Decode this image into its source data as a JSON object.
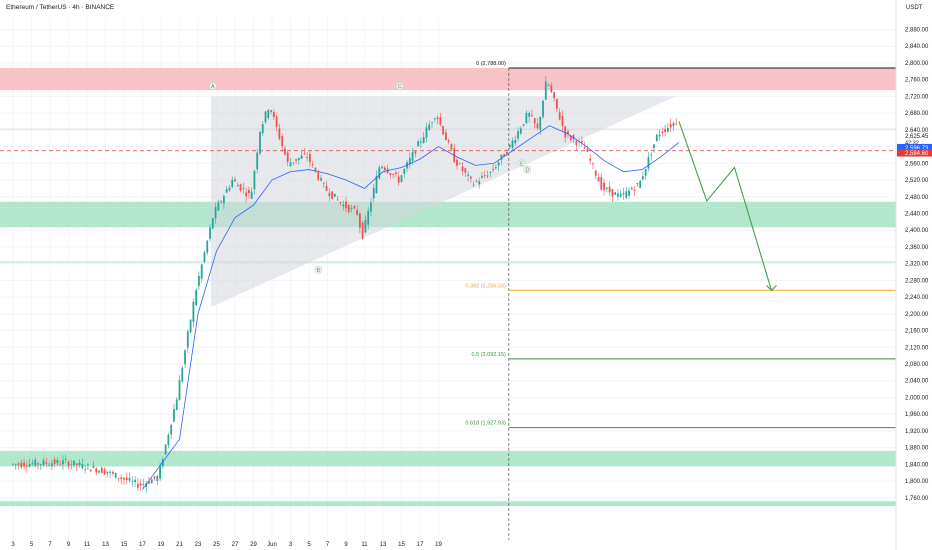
{
  "header": {
    "title": "Ethereum / TetherUS · 4h · BINANCE",
    "quote_currency": "USDT"
  },
  "colors": {
    "up": "#26a69a",
    "down": "#ef5350",
    "ema": "#2962ff",
    "resistance_zone": "#f7b9bd",
    "support_zone": "#a5e3c6",
    "projection": "#43a047",
    "fib_0382": "#f2a52c",
    "fib_05": "#388e3c",
    "fib_0618": "#388e3c",
    "current_line": "#e53935",
    "triangle": "#d4d7dd"
  },
  "chart_data": {
    "type": "candlestick",
    "symbol": "ETH/USDT",
    "interval": "4h",
    "x_ticks": [
      "3",
      "5",
      "7",
      "9",
      "11",
      "13",
      "15",
      "17",
      "19",
      "21",
      "23",
      "25",
      "27",
      "29",
      "Jun",
      "3",
      "5",
      "7",
      "9",
      "11",
      "13",
      "15",
      "17",
      "19"
    ],
    "y_ticks": [
      "2,880.00",
      "2,840.00",
      "2,800.00",
      "2,760.00",
      "2,720.00",
      "2,680.00",
      "2,640.00",
      "2,600.00",
      "2,560.00",
      "2,520.00",
      "2,480.00",
      "2,440.00",
      "2,400.00",
      "2,360.00",
      "2,320.00",
      "2,280.00",
      "2,240.00",
      "2,200.00",
      "2,160.00",
      "2,120.00",
      "2,080.00",
      "2,040.00",
      "2,000.00",
      "1,960.00",
      "1,920.00",
      "1,880.00",
      "1,840.00",
      "1,800.00",
      "1,760.00"
    ],
    "ylim": [
      1740,
      2900
    ],
    "price_path": [
      [
        0,
        1840
      ],
      [
        3,
        1845
      ],
      [
        5,
        1825
      ],
      [
        7,
        1790
      ],
      [
        8,
        1810
      ],
      [
        9,
        2000
      ],
      [
        10,
        2250
      ],
      [
        11,
        2440
      ],
      [
        12,
        2520
      ],
      [
        13,
        2480
      ],
      [
        13.5,
        2640
      ],
      [
        14,
        2700
      ],
      [
        15,
        2560
      ],
      [
        16,
        2580
      ],
      [
        17,
        2500
      ],
      [
        18,
        2460
      ],
      [
        18.8,
        2440
      ],
      [
        19,
        2380
      ],
      [
        20,
        2560
      ],
      [
        21,
        2520
      ],
      [
        22,
        2600
      ],
      [
        23,
        2680
      ],
      [
        24,
        2570
      ],
      [
        25,
        2510
      ],
      [
        26,
        2540
      ],
      [
        27,
        2600
      ],
      [
        28,
        2680
      ],
      [
        28.5,
        2640
      ],
      [
        29,
        2760
      ],
      [
        30,
        2630
      ],
      [
        31,
        2600
      ],
      [
        32,
        2500
      ],
      [
        33,
        2480
      ],
      [
        34,
        2510
      ],
      [
        35,
        2630
      ],
      [
        36,
        2660
      ]
    ],
    "ema_path": [
      [
        7,
        1780
      ],
      [
        9,
        1900
      ],
      [
        10,
        2200
      ],
      [
        11,
        2350
      ],
      [
        12,
        2430
      ],
      [
        13,
        2460
      ],
      [
        14,
        2520
      ],
      [
        15,
        2540
      ],
      [
        16,
        2545
      ],
      [
        17,
        2535
      ],
      [
        18,
        2520
      ],
      [
        19,
        2500
      ],
      [
        20,
        2540
      ],
      [
        21,
        2550
      ],
      [
        22,
        2570
      ],
      [
        23,
        2600
      ],
      [
        24,
        2575
      ],
      [
        25,
        2555
      ],
      [
        26,
        2560
      ],
      [
        27,
        2590
      ],
      [
        28,
        2620
      ],
      [
        29,
        2650
      ],
      [
        30,
        2630
      ],
      [
        31,
        2600
      ],
      [
        32,
        2565
      ],
      [
        33,
        2540
      ],
      [
        34,
        2545
      ],
      [
        35,
        2575
      ],
      [
        36,
        2610
      ]
    ],
    "zones": [
      {
        "kind": "resistance",
        "from": 2735,
        "to": 2788
      },
      {
        "kind": "support",
        "from": 2407,
        "to": 2468
      },
      {
        "kind": "support",
        "from": 1835,
        "to": 1872
      },
      {
        "kind": "support",
        "from": 1740,
        "to": 1752
      }
    ],
    "fibonacci": [
      {
        "label": "0 (2,788.00)",
        "price": 2788,
        "color": "#131722"
      },
      {
        "label": "0.382 (2,256.33)",
        "price": 2256.33,
        "color": "#f2a52c"
      },
      {
        "label": "0.5 (2,092.15)",
        "price": 2092.15,
        "color": "#388e3c"
      },
      {
        "label": "0.618 (1,927.93)",
        "price": 1927.93,
        "color": "#388e3c"
      }
    ],
    "markers": [
      "A",
      "C",
      "E",
      "B",
      "D"
    ],
    "projection_path": [
      [
        36,
        2660
      ],
      [
        37.5,
        2470
      ],
      [
        39,
        2550
      ],
      [
        41,
        2256
      ]
    ],
    "price_labels": [
      {
        "text": "2,625.45",
        "sub": "42:32",
        "price": 2625.45,
        "bg": "#ffffff",
        "fg": "#131722"
      },
      {
        "text": "2,596.73",
        "price": 2596.73,
        "bg": "#2962ff",
        "fg": "#ffffff"
      },
      {
        "text": "2,584.60",
        "price": 2584.6,
        "bg": "#e53935",
        "fg": "#ffffff"
      }
    ],
    "current_price": 2590,
    "xlabel": "",
    "ylabel": ""
  }
}
